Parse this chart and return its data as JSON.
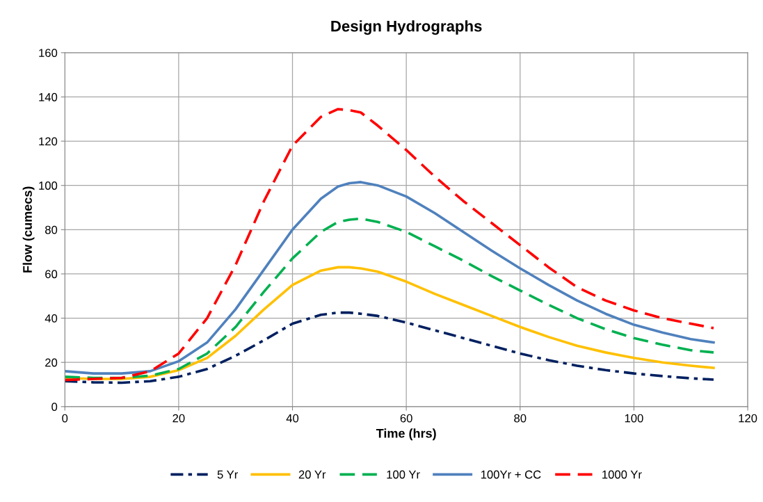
{
  "chart_data": {
    "type": "line",
    "title": "Design Hydrographs",
    "xlabel": "Time (hrs)",
    "ylabel": "Flow (cumecs)",
    "x": [
      0,
      5,
      10,
      15,
      20,
      25,
      30,
      35,
      40,
      45,
      48,
      50,
      52,
      55,
      60,
      65,
      70,
      75,
      80,
      85,
      90,
      95,
      100,
      105,
      110,
      114
    ],
    "series": [
      {
        "name": "5 Yr",
        "color": "#002060",
        "line_style": "dashdot",
        "values": [
          11.5,
          11,
          10.8,
          11.5,
          13.5,
          17,
          23,
          30,
          37.5,
          41.5,
          42.5,
          42.5,
          42,
          41,
          38,
          34.5,
          31,
          27.5,
          24,
          21,
          18.5,
          16.5,
          15,
          13.8,
          12.8,
          12.2
        ]
      },
      {
        "name": "20 Yr",
        "color": "#ffc000",
        "line_style": "solid",
        "values": [
          13,
          12.5,
          12.5,
          13.5,
          16.5,
          22,
          32,
          44,
          55,
          61.5,
          63,
          63,
          62.5,
          61,
          56.5,
          51,
          46,
          41,
          36,
          31.5,
          27.5,
          24.5,
          22,
          20,
          18.5,
          17.5
        ]
      },
      {
        "name": "100 Yr",
        "color": "#00b050",
        "line_style": "dashed",
        "values": [
          13.5,
          13,
          13,
          14,
          17,
          24,
          36,
          52,
          67,
          79,
          83.5,
          84.5,
          85,
          83.5,
          79,
          72.5,
          66,
          59,
          52.5,
          46,
          40,
          35,
          31,
          28,
          25.5,
          24.5
        ]
      },
      {
        "name": "100Yr + CC",
        "color": "#4f81bd",
        "line_style": "solid",
        "values": [
          16,
          15,
          15,
          16,
          20.5,
          29,
          44,
          62,
          80,
          94,
          99.5,
          101,
          101.5,
          100,
          95,
          87.5,
          79,
          70.5,
          62.5,
          55,
          48,
          42,
          37,
          33.5,
          30.5,
          29
        ]
      },
      {
        "name": "1000 Yr",
        "color": "#ff0000",
        "line_style": "dashed",
        "values": [
          12,
          12.5,
          13,
          16,
          24,
          40,
          64,
          93,
          118,
          131,
          134.5,
          134,
          133,
          127,
          116,
          104,
          93,
          83,
          73,
          63,
          54,
          48,
          43.5,
          40,
          37.5,
          35.5
        ]
      }
    ],
    "xlim": [
      0,
      120
    ],
    "xticks": [
      0,
      20,
      40,
      60,
      80,
      100,
      120
    ],
    "ylim": [
      0,
      160
    ],
    "yticks": [
      0,
      20,
      40,
      60,
      80,
      100,
      120,
      140,
      160
    ],
    "grid": true,
    "legend": "bottom",
    "marker": "none"
  }
}
